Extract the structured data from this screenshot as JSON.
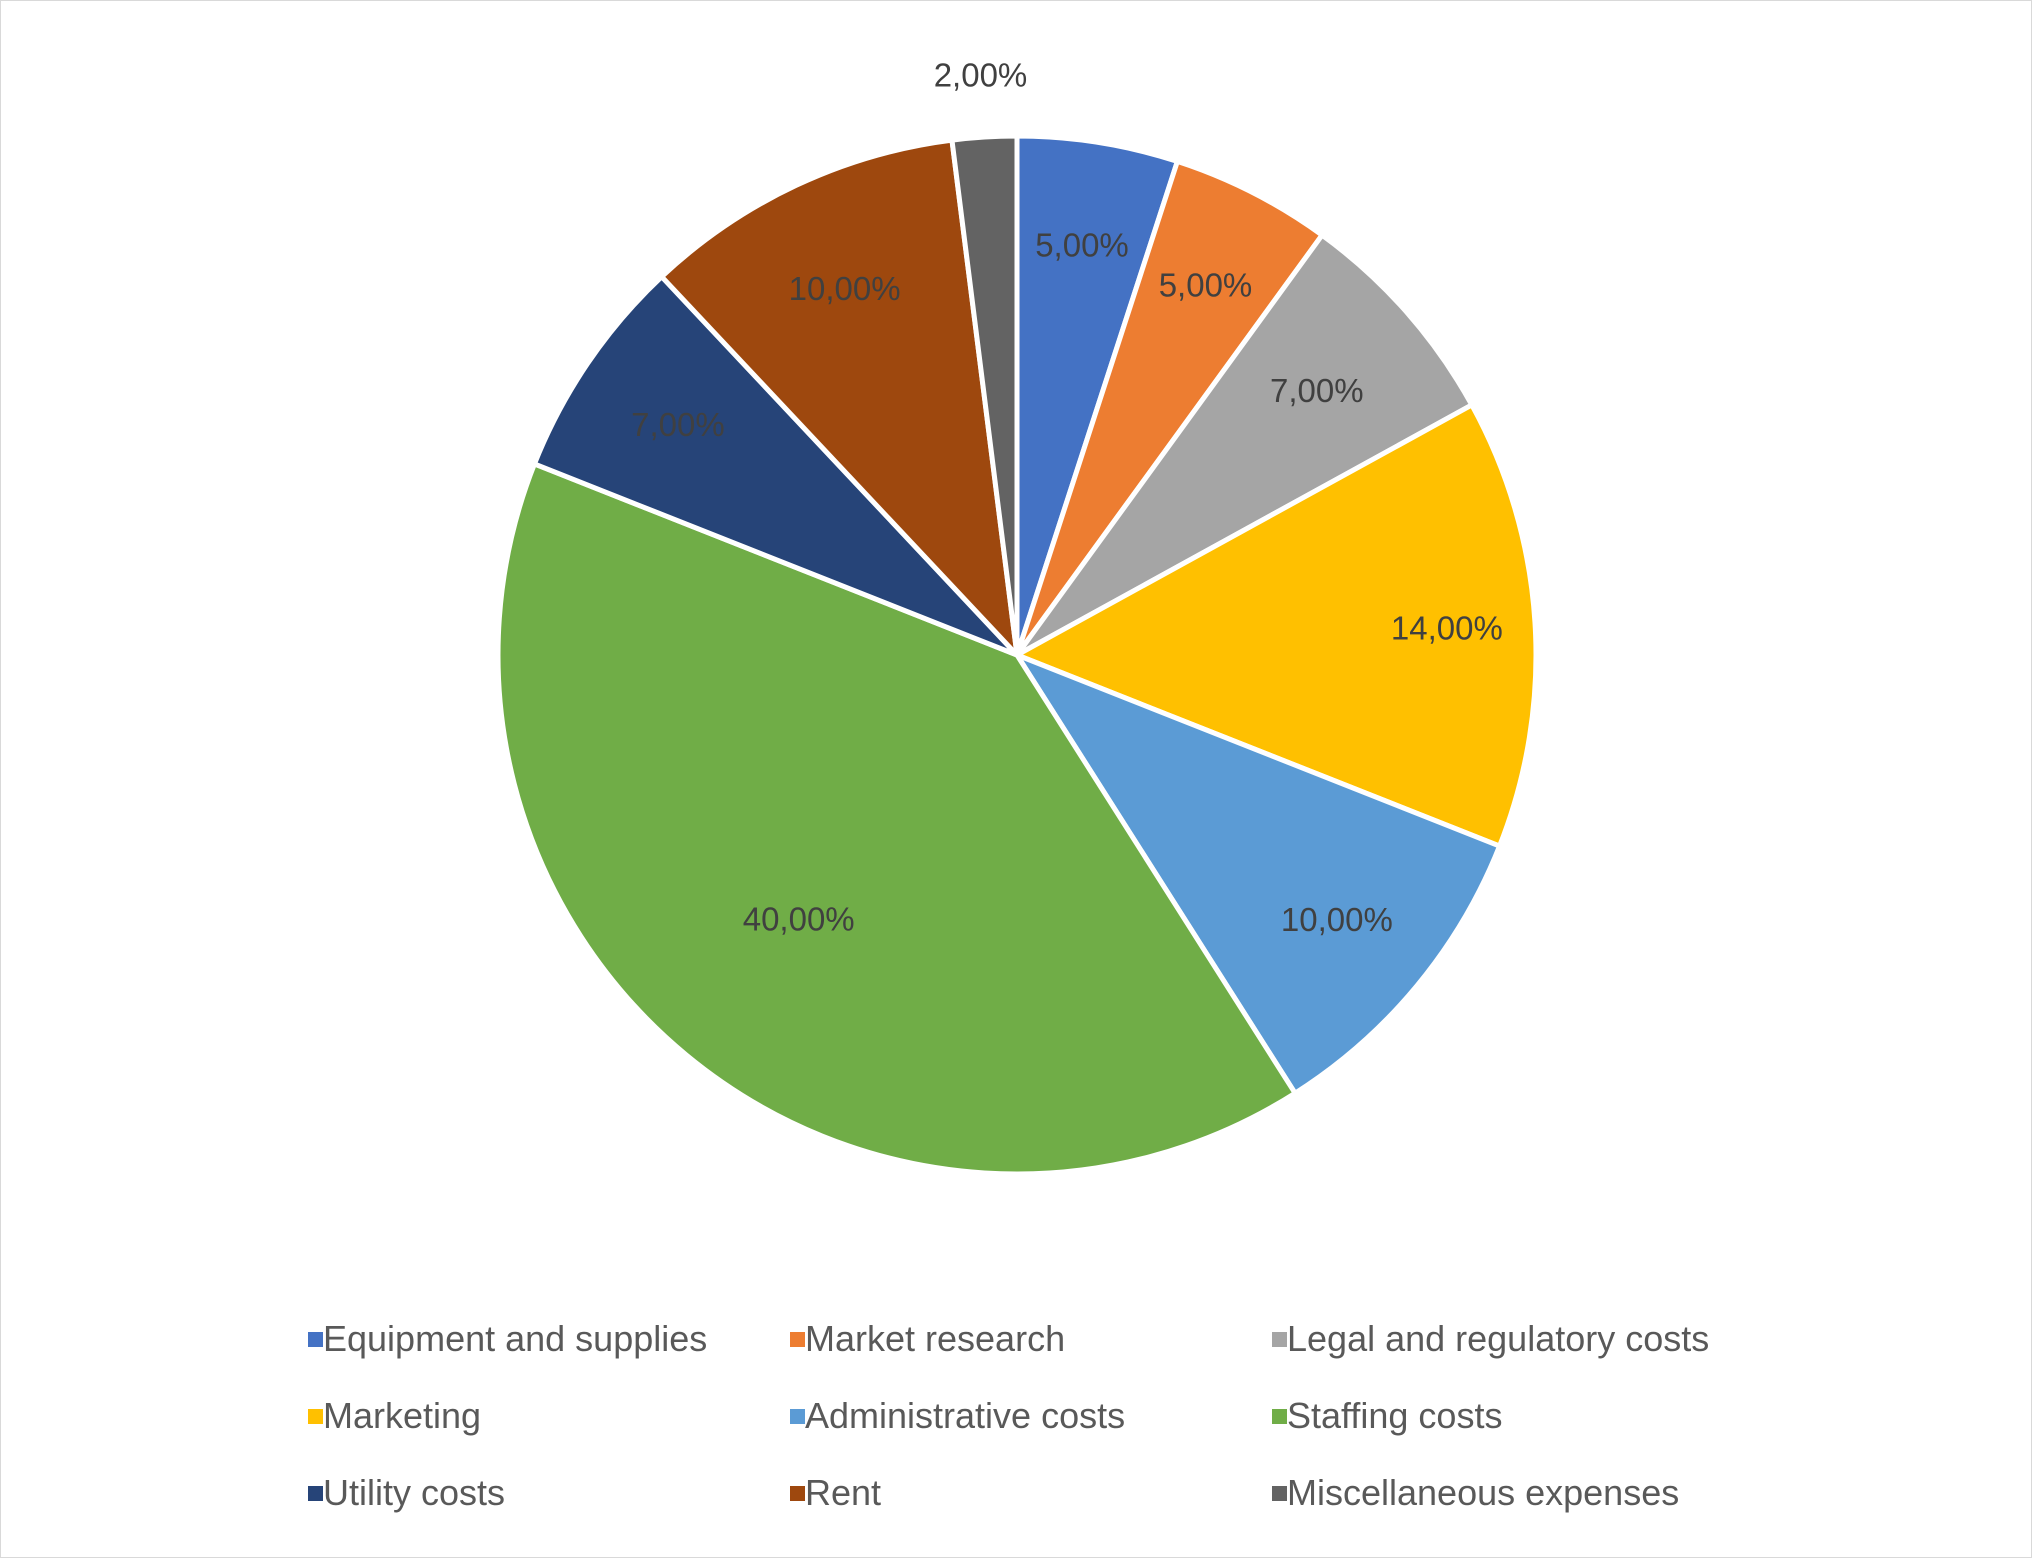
{
  "chart_data": {
    "type": "pie",
    "slices": [
      {
        "name": "Equipment and supplies",
        "value": 5,
        "label": "5,00%",
        "color": "#4472c4"
      },
      {
        "name": "Market research",
        "value": 5,
        "label": "5,00%",
        "color": "#ed7d31"
      },
      {
        "name": "Legal and regulatory costs",
        "value": 7,
        "label": "7,00%",
        "color": "#a5a5a5"
      },
      {
        "name": "Marketing",
        "value": 14,
        "label": "14,00%",
        "color": "#ffc000"
      },
      {
        "name": "Administrative costs",
        "value": 10,
        "label": "10,00%",
        "color": "#5b9bd5"
      },
      {
        "name": "Staffing costs",
        "value": 40,
        "label": "40,00%",
        "color": "#70ad47"
      },
      {
        "name": "Utility costs",
        "value": 7,
        "label": "7,00%",
        "color": "#264478"
      },
      {
        "name": "Rent",
        "value": 10,
        "label": "10,00%",
        "color": "#9e480e"
      },
      {
        "name": "Miscellaneous expenses",
        "value": 2,
        "label": "2,00%",
        "color": "#636363"
      }
    ],
    "legend_position": "bottom"
  }
}
